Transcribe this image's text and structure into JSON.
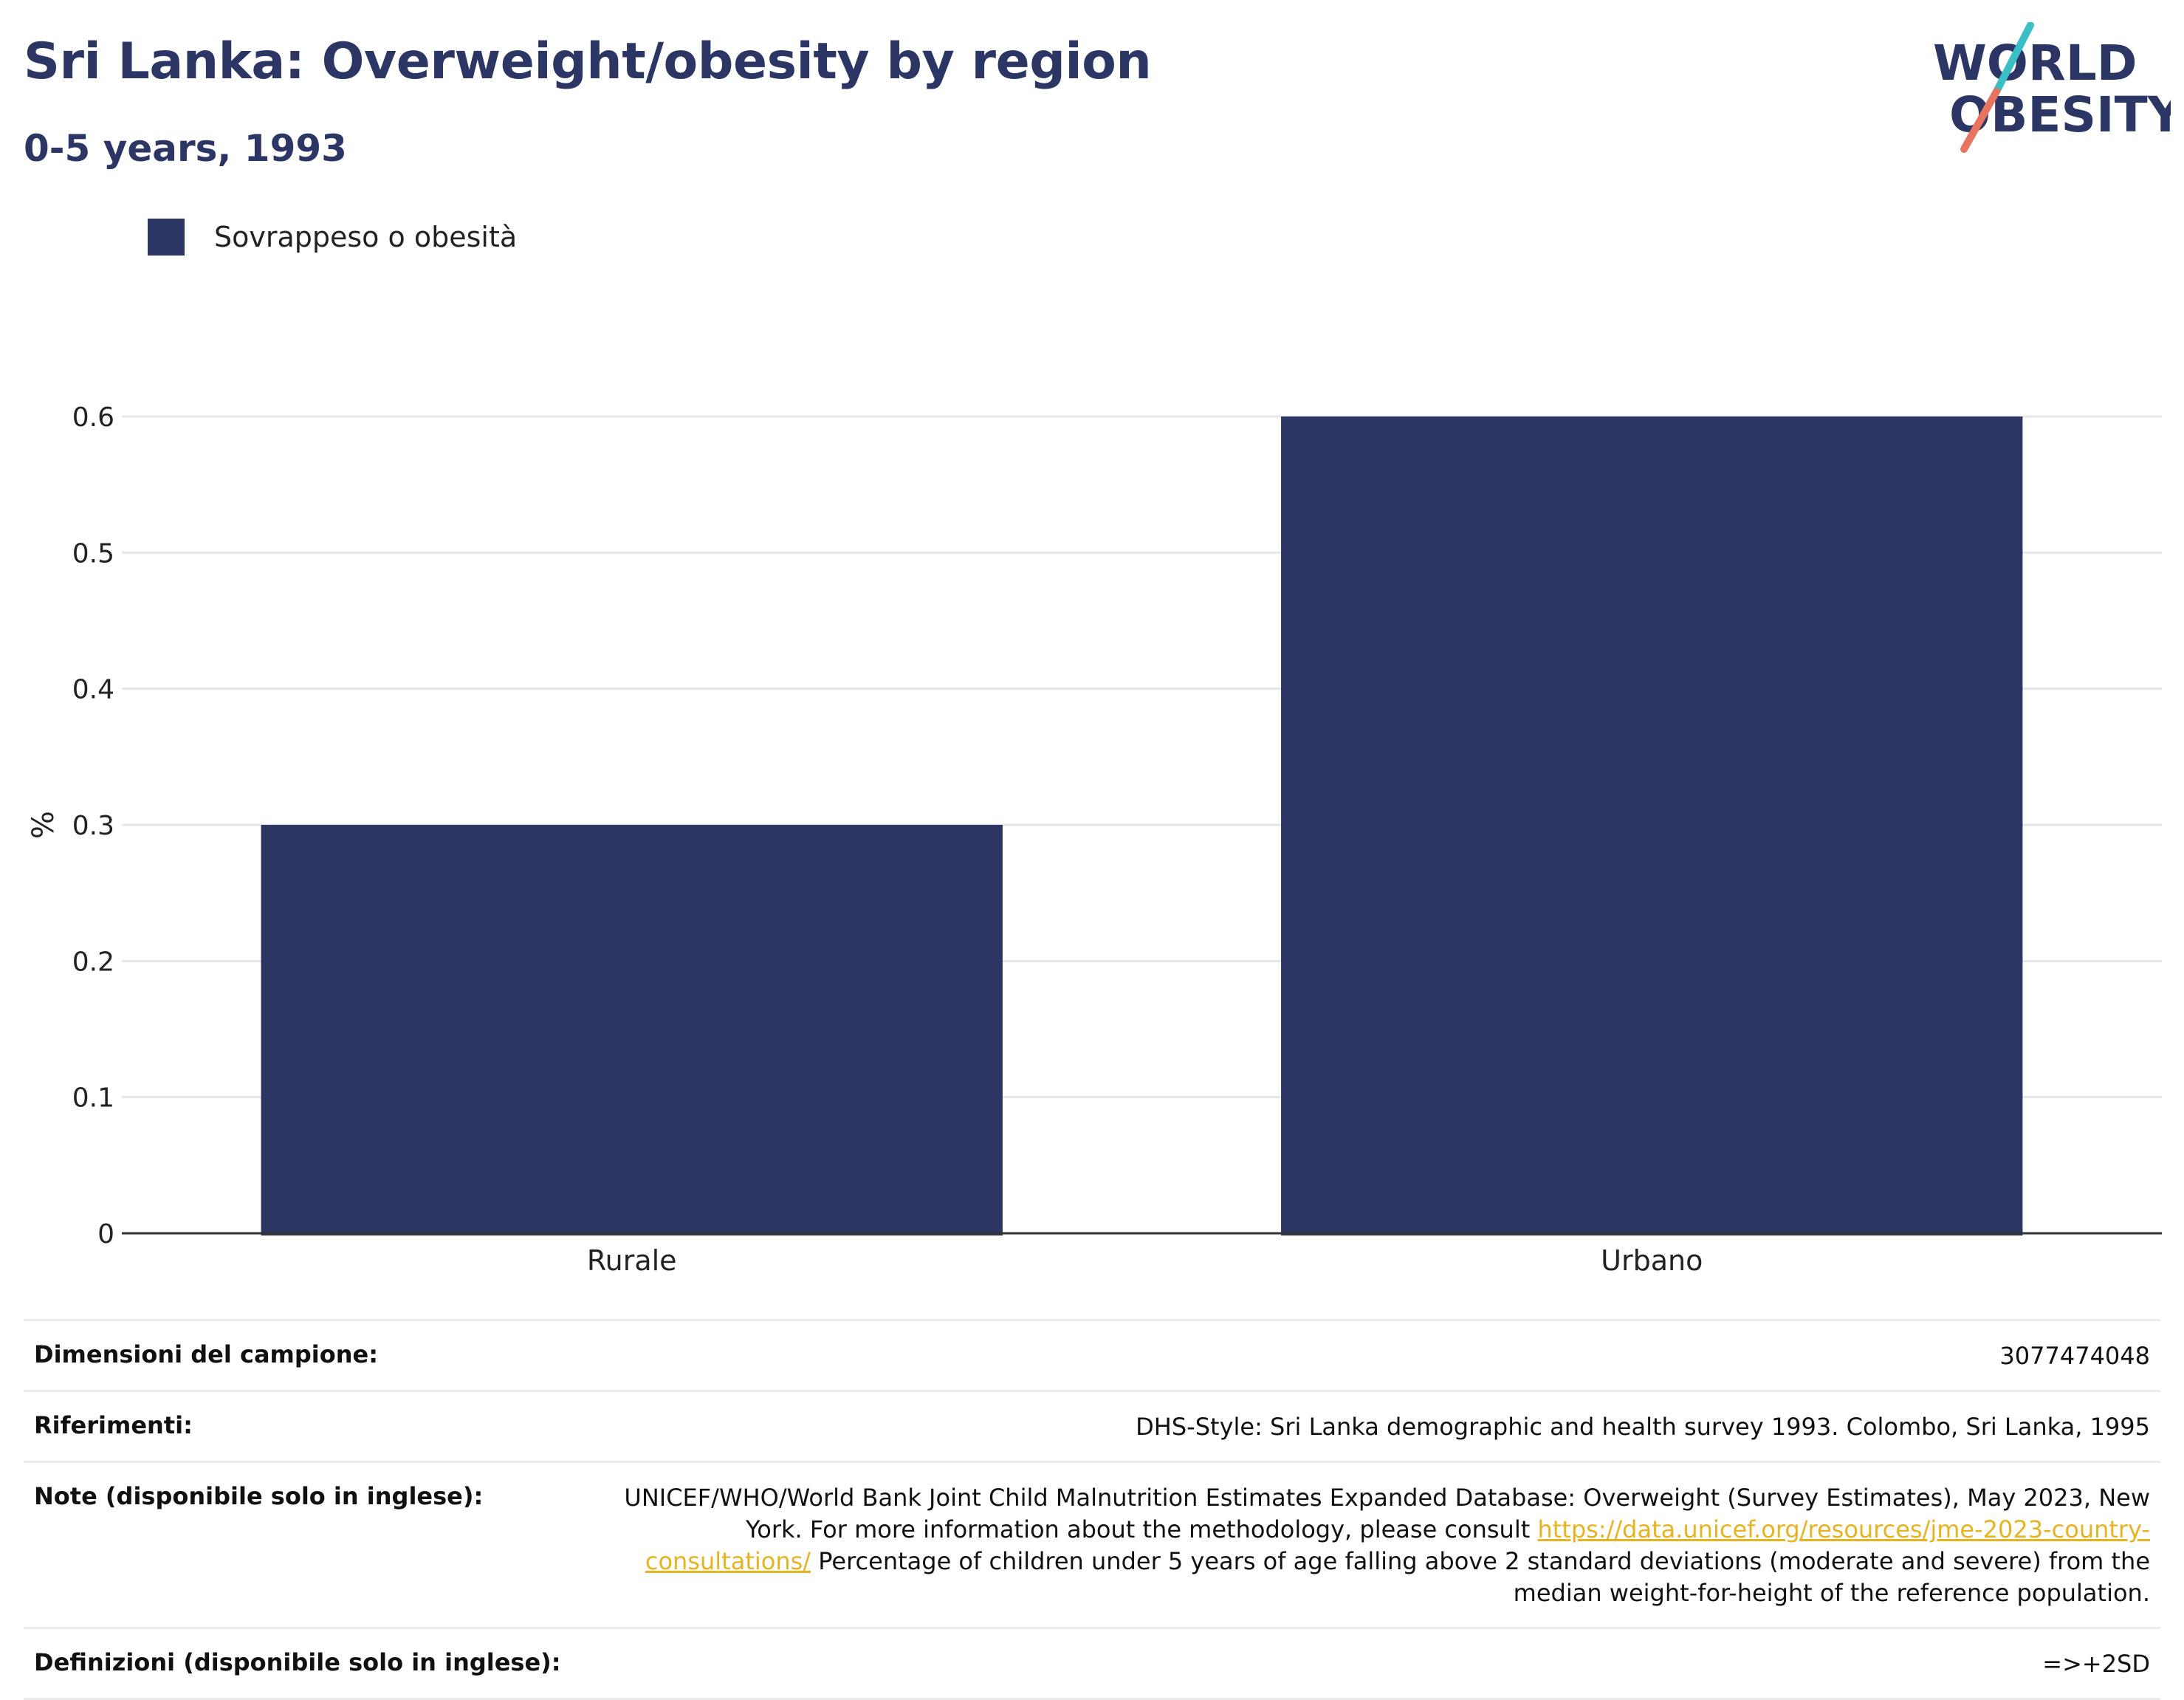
{
  "header": {
    "title": "Sri Lanka: Overweight/obesity by region",
    "subtitle": "0-5 years, 1993"
  },
  "logo": {
    "line1": "WORLD",
    "line2": "OBESITY",
    "slash_colors": [
      "#3bbfc4",
      "#e8735f"
    ]
  },
  "colors": {
    "bar": "#2b3664",
    "title": "#2b3664",
    "grid": "#e6e6e6",
    "axis": "#333333",
    "link": "#e6b422"
  },
  "chart_data": {
    "type": "bar",
    "categories": [
      "Rurale",
      "Urbano"
    ],
    "series": [
      {
        "name": "Sovrappeso o obesità",
        "values": [
          0.3,
          0.6
        ]
      }
    ],
    "ylabel": "%",
    "xlabel": "",
    "ylim": [
      0,
      0.6
    ],
    "yticks": [
      0,
      0.1,
      0.2,
      0.3,
      0.4,
      0.5,
      0.6
    ],
    "ytick_labels": [
      "0",
      "0.1",
      "0.2",
      "0.3",
      "0.4",
      "0.5",
      "0.6"
    ],
    "grid": true,
    "legend_position": "top-left"
  },
  "info": {
    "sample_size": {
      "label": "Dimensioni del campione:",
      "value": "3077474048"
    },
    "references": {
      "label": "Riferimenti:",
      "value": "DHS-Style: Sri Lanka demographic and health survey 1993. Colombo, Sri Lanka, 1995"
    },
    "notes": {
      "label": "Note (disponibile solo in inglese):",
      "text_before": "UNICEF/WHO/World Bank Joint Child Malnutrition Estimates Expanded Database: Overweight (Survey Estimates), May 2023, New York. For more information about the methodology, please consult ",
      "link": "https://data.unicef.org/resources/jme-2023-country-consultations/",
      "text_after": " Percentage of children under 5 years of age falling above 2 standard deviations (moderate and severe) from the median weight-for-height of the reference population."
    },
    "definitions": {
      "label": "Definizioni (disponibile solo in inglese):",
      "value": "=>+2SD"
    }
  }
}
